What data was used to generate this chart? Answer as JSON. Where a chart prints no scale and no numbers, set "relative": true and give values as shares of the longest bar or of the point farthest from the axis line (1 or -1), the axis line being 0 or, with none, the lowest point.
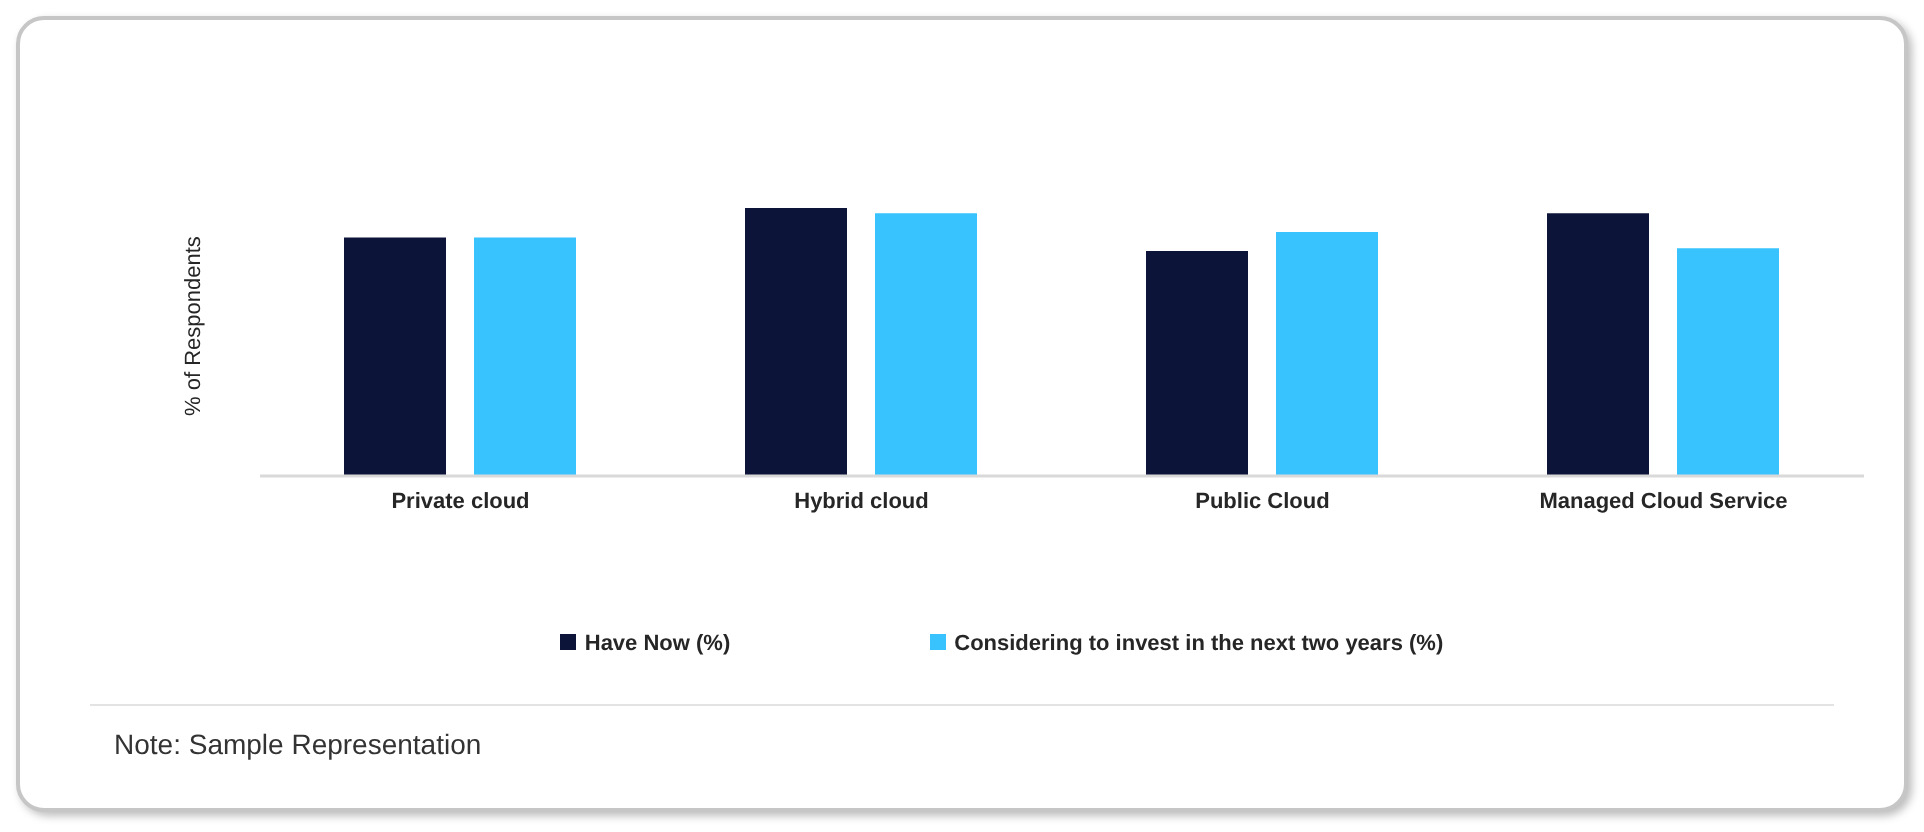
{
  "chart_data": {
    "type": "bar",
    "ylabel": "% of Respondents",
    "categories": [
      "Private cloud",
      "Hybrid cloud",
      "Public Cloud",
      "Managed Cloud Service"
    ],
    "relative": true,
    "series": [
      {
        "name": "Have Now (%)",
        "color": "#0c1539",
        "values": [
          0.89,
          1,
          0.84,
          0.98
        ]
      },
      {
        "name": "Considering to invest in the next two years (%)",
        "color": "#38c3ff",
        "values": [
          0.89,
          0.98,
          0.91,
          0.85
        ]
      }
    ],
    "legend": "bottom",
    "grid": false,
    "annotations": [
      "Note: Sample Representation"
    ]
  }
}
